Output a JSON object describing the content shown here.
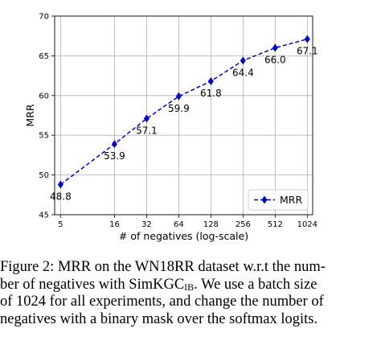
{
  "chart_data": {
    "type": "line",
    "x": [
      5,
      16,
      32,
      64,
      128,
      256,
      512,
      1024
    ],
    "x_tick_labels": [
      "5",
      "16",
      "32",
      "64",
      "128",
      "256",
      "512",
      "1024"
    ],
    "x_scale": "log",
    "series": [
      {
        "name": "MRR",
        "values": [
          48.8,
          53.9,
          57.1,
          59.9,
          61.8,
          64.4,
          66.0,
          67.1
        ],
        "color": "#0000cc",
        "marker": "diamond",
        "linestyle": "dashed"
      }
    ],
    "data_labels": [
      "48.8",
      "53.9",
      "57.1",
      "59.9",
      "61.8",
      "64.4",
      "66.0",
      "67.1"
    ],
    "xlabel": "# of negatives (log-scale)",
    "ylabel": "MRR",
    "ylim": [
      45,
      70
    ],
    "y_ticks": [
      45,
      50,
      55,
      60,
      65,
      70
    ],
    "grid": true,
    "legend": {
      "position": "lower-right",
      "entries": [
        "MRR"
      ]
    }
  },
  "caption": {
    "lines": [
      {
        "text": "Figure 2: MRR on the WN18RR dataset w.r.t the num-"
      },
      {
        "pre": "ber of negatives with SimKGC",
        "sub": "IB",
        "post": ". We use a batch size"
      },
      {
        "text": "of 1024 for all experiments, and change the number of"
      },
      {
        "text": "negatives with a binary mask over the softmax logits."
      }
    ]
  }
}
